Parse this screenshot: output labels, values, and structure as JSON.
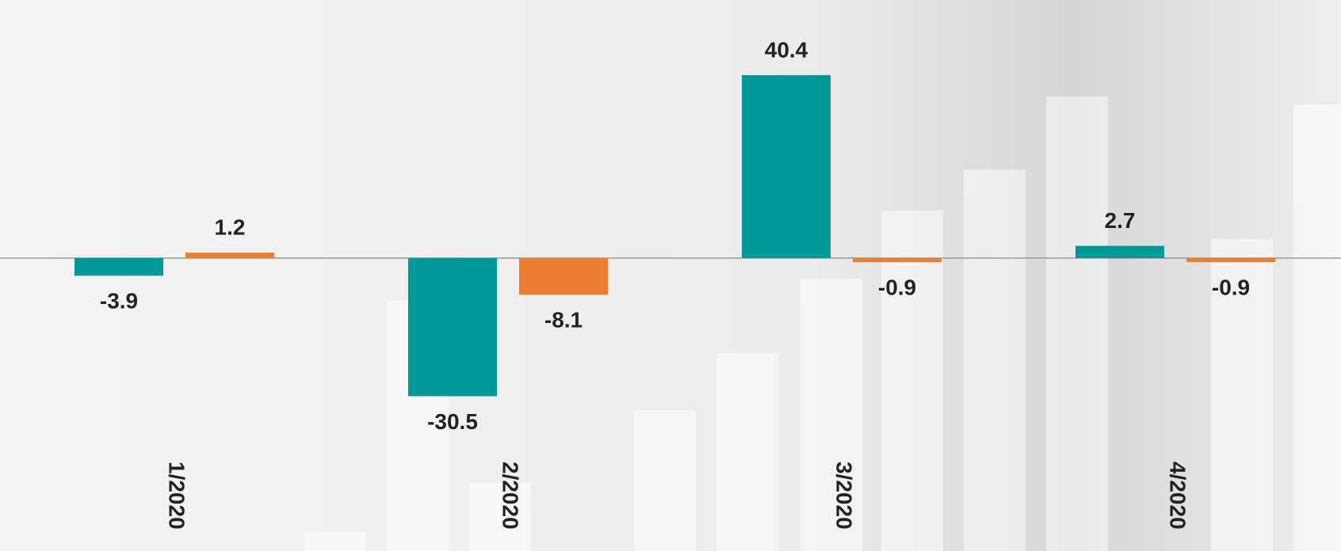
{
  "chart_data": {
    "type": "bar",
    "categories": [
      "1/2020",
      "2/2020",
      "3/2020",
      "4/2020"
    ],
    "series": [
      {
        "color": "#009999",
        "values": [
          -3.9,
          -30.5,
          40.4,
          2.7
        ]
      },
      {
        "color": "#ED7D31",
        "values": [
          1.2,
          -8.1,
          -0.9,
          -0.9
        ]
      }
    ]
  }
}
